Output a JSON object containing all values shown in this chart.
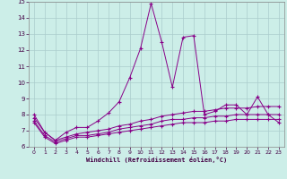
{
  "xlabel": "Windchill (Refroidissement éolien,°C)",
  "background_color": "#cceee8",
  "grid_color": "#aacccc",
  "line_color": "#880088",
  "x_values": [
    0,
    1,
    2,
    3,
    4,
    5,
    6,
    7,
    8,
    9,
    10,
    11,
    12,
    13,
    14,
    15,
    16,
    17,
    18,
    19,
    20,
    21,
    22,
    23
  ],
  "series1": [
    8.0,
    6.9,
    6.4,
    6.9,
    7.2,
    7.2,
    7.6,
    8.1,
    8.8,
    10.3,
    12.1,
    14.9,
    12.5,
    9.7,
    12.8,
    12.9,
    8.0,
    8.2,
    8.6,
    8.6,
    8.0,
    9.1,
    8.0,
    7.5
  ],
  "series2": [
    7.8,
    6.9,
    6.4,
    6.6,
    6.8,
    6.9,
    7.0,
    7.1,
    7.3,
    7.4,
    7.6,
    7.7,
    7.9,
    8.0,
    8.1,
    8.2,
    8.2,
    8.3,
    8.4,
    8.4,
    8.4,
    8.5,
    8.5,
    8.5
  ],
  "series3": [
    7.6,
    6.7,
    6.3,
    6.5,
    6.7,
    6.7,
    6.8,
    6.9,
    7.1,
    7.2,
    7.3,
    7.4,
    7.6,
    7.7,
    7.7,
    7.8,
    7.8,
    7.9,
    7.9,
    8.0,
    8.0,
    8.0,
    8.0,
    8.0
  ],
  "series4": [
    7.5,
    6.6,
    6.2,
    6.4,
    6.6,
    6.6,
    6.7,
    6.8,
    6.9,
    7.0,
    7.1,
    7.2,
    7.3,
    7.4,
    7.5,
    7.5,
    7.5,
    7.6,
    7.6,
    7.7,
    7.7,
    7.7,
    7.7,
    7.7
  ],
  "ylim": [
    6,
    15
  ],
  "xlim_min": -0.5,
  "xlim_max": 23.5,
  "yticks": [
    6,
    7,
    8,
    9,
    10,
    11,
    12,
    13,
    14,
    15
  ],
  "xticks": [
    0,
    1,
    2,
    3,
    4,
    5,
    6,
    7,
    8,
    9,
    10,
    11,
    12,
    13,
    14,
    15,
    16,
    17,
    18,
    19,
    20,
    21,
    22,
    23
  ]
}
